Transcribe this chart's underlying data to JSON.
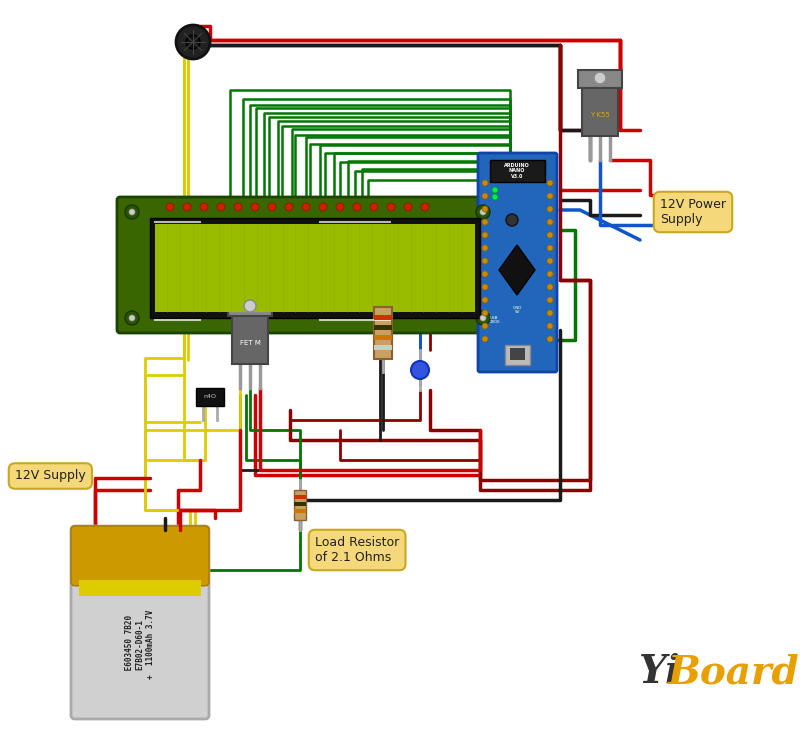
{
  "bg_color": "#ffffff",
  "wire_colors": {
    "red": "#cc0000",
    "black": "#1a1a1a",
    "yellow": "#ddcc00",
    "green": "#007700",
    "blue": "#1155cc",
    "brown": "#8B3000",
    "darkred": "#8B0000"
  },
  "label_bg": "#f5d87a",
  "label_border": "#c8a820",
  "yiboard_yi": "#333333",
  "yiboard_board": "#e8a000",
  "lcd_bg": "#3a6600",
  "lcd_screen": "#99bb00",
  "lcd_border": "#1a4400",
  "arduino_bg": "#2266bb",
  "transistor_body": "#666666",
  "transistor_tab": "#888888",
  "resistor_body": "#c8a060",
  "battery_silver": "#cccccc",
  "battery_gold": "#cc9900",
  "battery_yellow_stripe": "#ddcc00",
  "power_supply_label": "12V Power\nSupply",
  "supply_12v_label": "12V Supply",
  "load_resistor_label": "Load Resistor\nof 2.1 Ohms"
}
